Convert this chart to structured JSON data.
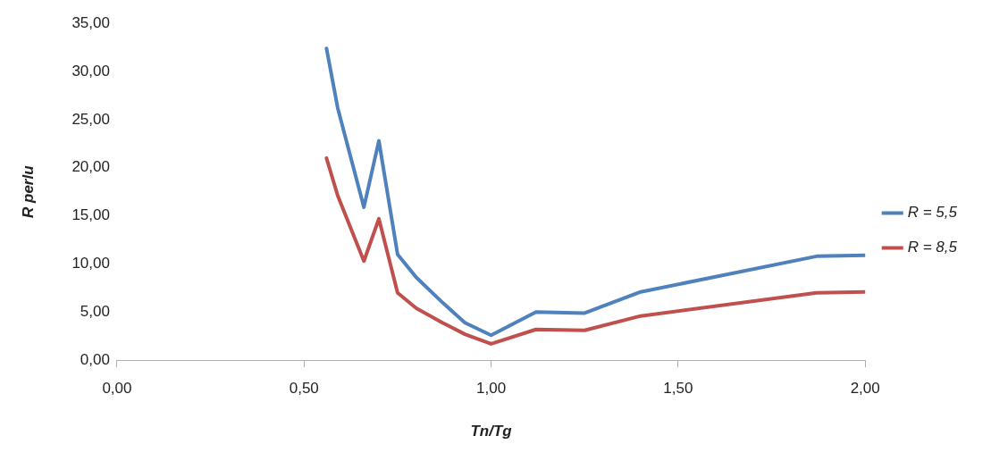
{
  "chart_data": {
    "type": "line",
    "xlabel": "Tn/Tg",
    "ylabel": "R perlu",
    "xlim": [
      0,
      2
    ],
    "xticks": [
      {
        "value": 0,
        "label": "0,00"
      },
      {
        "value": 0.5,
        "label": "0,50"
      },
      {
        "value": 1,
        "label": "1,00"
      },
      {
        "value": 1.5,
        "label": "1,50"
      },
      {
        "value": 2,
        "label": "2,00"
      }
    ],
    "ylim": [
      0,
      35
    ],
    "yticks": [
      {
        "value": 0,
        "label": "0,00"
      },
      {
        "value": 5,
        "label": "5,00"
      },
      {
        "value": 10,
        "label": "10,00"
      },
      {
        "value": 15,
        "label": "15,00"
      },
      {
        "value": 20,
        "label": "20,00"
      },
      {
        "value": 25,
        "label": "25,00"
      },
      {
        "value": 30,
        "label": "30,00"
      },
      {
        "value": 35,
        "label": "35,00"
      }
    ],
    "x": [
      0.56,
      0.59,
      0.66,
      0.7,
      0.75,
      0.8,
      0.87,
      0.93,
      1.0,
      1.12,
      1.25,
      1.4,
      1.87,
      2.0
    ],
    "series": [
      {
        "name": "R = 5,5",
        "color": "#4f81bd",
        "values": [
          32.4,
          26.2,
          15.9,
          22.8,
          11.0,
          8.6,
          6.0,
          3.9,
          2.6,
          5.0,
          4.9,
          7.1,
          10.8,
          10.9
        ]
      },
      {
        "name": "R = 8,5",
        "color": "#c0504d",
        "values": [
          21.0,
          17.1,
          10.3,
          14.7,
          7.0,
          5.4,
          3.9,
          2.7,
          1.7,
          3.2,
          3.1,
          4.6,
          7.0,
          7.1
        ]
      }
    ],
    "grid": false,
    "legend": "right",
    "marker": "none",
    "line_style": "solid"
  }
}
